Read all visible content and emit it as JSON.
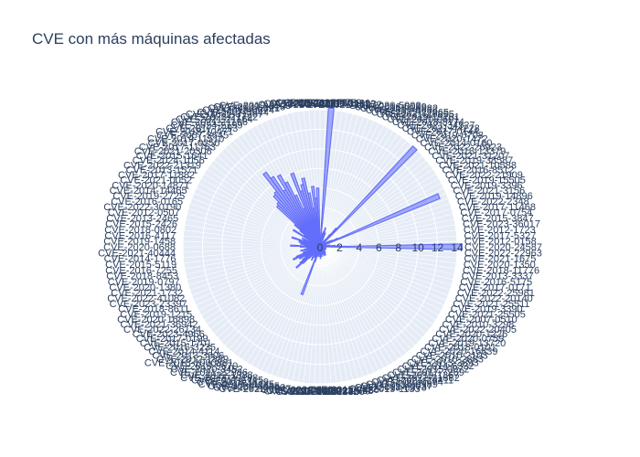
{
  "title": "CVE con más máquinas afectadas",
  "colors": {
    "bar_fill": "rgba(99,110,250,0.55)",
    "bar_line": "#636efa",
    "polar_bg": "#e5ecf6",
    "grid": "#ffffff",
    "text": "#2a3f5f"
  },
  "chart_data": {
    "type": "bar",
    "polar": true,
    "title": "CVE con más máquinas afectadas",
    "radial_range": [
      0,
      14
    ],
    "radial_ticks": [
      "0",
      "2",
      "4",
      "6",
      "8",
      "10",
      "12",
      "14"
    ],
    "grid": true,
    "categories": [
      "CVE-2020-24587",
      "CVE-2012-0158",
      "CVE-2017-5327",
      "CVE-2012-1723",
      "CVE-2023-36017",
      "CVE-2015-3847",
      "CVE-2017-0754",
      "CVE-2017-11468",
      "CVE-2022-2348",
      "CVE-2019-14896",
      "CVE-2021-3156",
      "CVE-2019-3396",
      "CVE-2019-15505",
      "CVE-2022-21909",
      "CVE-2016-8512",
      "CVE-2021-10588",
      "CVE-2019-38587",
      "CVE-2021-31207",
      "CVE-2018-13379",
      "CVE-2022-26923",
      "CVE-2014-0160",
      "CVE-2020-1472",
      "CVE-2019-0708",
      "CVE-2017-0144",
      "CVE-2021-44228",
      "CVE-2021-34527",
      "CVE-2018-8174",
      "CVE-2020-0601",
      "CVE-2019-19781",
      "CVE-2021-26855",
      "CVE-2022-22965",
      "CVE-2017-5638",
      "CVE-2018-15982",
      "CVE-2016-0099",
      "CVE-2020-5902",
      "CVE-2021-21972",
      "CVE-2019-11510",
      "CVE-2020-10189",
      "CVE-2017-8759",
      "CVE-2018-4878",
      "CVE-2020-10735",
      "CVE-2018-20676",
      "CVE-2020-20001",
      "CVE-2021-27903",
      "CVE-2019-2503",
      "CVE-2009-2618",
      "CVE-2014-6321",
      "CVE-2016-5674",
      "CVE-2007-3644",
      "CVE-2021-31207",
      "CVE-2023-21722",
      "CVE-2021-21164",
      "CVE-2021-21196",
      "CVE-2024-2199",
      "CVE-2017-7293",
      "CVE-2018-10471",
      "CVE-2007-3645",
      "CVE-2019-11510",
      "CVE-2017-0250",
      "CVE-2017-11763",
      "CVE-2021-20308",
      "CVE-2015-1641",
      "CVE-2024-1056",
      "CVE-2022-21319",
      "CVE-2013-1571",
      "CVE-2017-11882",
      "CVE-2021-0052",
      "CVE-2020-14871",
      "CVE-2014-14465",
      "CVE-2019-2725",
      "CVE-2016-0165",
      "CVE-2022-30190",
      "CVE-2012-0507",
      "CVE-2013-2465",
      "CVE-2015-2426",
      "CVE-2018-0802",
      "CVE-2016-4117",
      "CVE-2019-1458",
      "CVE-2020-0688",
      "CVE-2021-40444",
      "CVE-2014-1776",
      "CVE-2015-5119",
      "CVE-2016-7255",
      "CVE-2018-8453",
      "CVE-2019-0797",
      "CVE-2020-1380",
      "CVE-2021-1732",
      "CVE-2022-41082",
      "CVE-2023-23397",
      "CVE-2018-8611",
      "CVE-2019-1215",
      "CVE-2020-16898",
      "CVE-2021-36942",
      "CVE-2022-26134",
      "CVE-2023-4966",
      "CVE-2017-0199",
      "CVE-2015-1701",
      "CVE-2016-3235",
      "CVE-2014-4114",
      "CVE-2013-3906",
      "CVE-2012-1889",
      "CVE-2018-1000861",
      "CVE-2019-9670",
      "CVE-2020-3452",
      "CVE-2021-22986",
      "CVE-2022-1388",
      "CVE-2023-20198",
      "CVE-2017-5715",
      "CVE-2018-3639",
      "CVE-2019-11135",
      "CVE-2020-8835",
      "CVE-2021-3560",
      "CVE-2022-0847",
      "CVE-2023-0386",
      "CVE-2016-5195",
      "CVE-2017-1000253",
      "CVE-2018-14634",
      "CVE-2019-13272",
      "CVE-2020-14386",
      "CVE-2021-22555",
      "CVE-2022-2588",
      "CVE-2015-2426",
      "CVE-2019-1133",
      "CVE-2018-8373",
      "CVE-2017-0037",
      "CVE-2016-0189",
      "CVE-2020-0674",
      "CVE-2021-26411",
      "CVE-2022-21882",
      "CVE-2019-1367",
      "CVE-2017-7269",
      "CVE-2015-0072",
      "CVE-2014-6332",
      "CVE-2013-3893",
      "CVE-2010-2883",
      "CVE-2010-2103",
      "CVE-2020-16839",
      "CVE-2018-0101",
      "CVE-2019-13720",
      "CVE-2020-0759",
      "CVE-2020-1226",
      "CVE-2022-20405",
      "CVE-2010-3298",
      "CVE-2007-0510",
      "CVE-2021-25505",
      "CVE-2019-3390",
      "CVE-2021-25511",
      "CVE-2022-20140",
      "CVE-2022-25981",
      "CVE-2017-0171",
      "CVE-2016-5175",
      "CVE-2013-3337",
      "CVE-2018-11776",
      "CVE-2020-1350",
      "CVE-2021-1675",
      "CVE-2022-22963"
    ],
    "values": [
      14.5,
      2.0,
      1.5,
      1.0,
      1.0,
      0.6,
      0.6,
      0.5,
      0.4,
      0.4,
      13.2,
      2.0,
      1.4,
      1.2,
      1.0,
      0.8,
      0.7,
      0.6,
      0.5,
      0.5,
      14.0,
      2.5,
      1.6,
      1.0,
      0.8,
      0.6,
      0.5,
      0.5,
      0.4,
      0.4,
      1.5,
      1.2,
      2.0,
      1.6,
      1.4,
      1.0,
      0.8,
      14.2,
      1.0,
      0.6,
      6.0,
      5.0,
      6.2,
      4.0,
      5.6,
      7.2,
      6.6,
      6.0,
      8.0,
      4.2,
      5.8,
      7.4,
      8.4,
      6.8,
      8.6,
      9.4,
      7.2,
      7.0,
      6.2,
      6.0,
      3.4,
      2.6,
      2.0,
      1.6,
      3.2,
      1.2,
      1.0,
      2.0,
      1.8,
      1.2,
      3.0,
      1.4,
      2.2,
      1.2,
      2.0,
      1.0,
      1.6,
      3.0,
      2.0,
      1.4,
      1.2,
      1.0,
      1.6,
      2.0,
      1.2,
      1.0,
      1.8,
      1.0,
      2.6,
      3.0,
      1.6,
      2.4,
      1.2,
      1.8,
      2.2,
      2.6,
      3.2,
      2.4,
      1.6,
      1.2,
      1.0,
      0.8,
      1.4,
      1.6,
      1.0,
      0.8,
      1.2,
      1.0,
      5.2,
      1.6,
      1.0,
      0.8,
      0.6,
      0.8,
      1.0,
      0.8,
      0.6,
      0.8,
      1.2,
      1.0,
      0.8,
      0.8,
      1.0,
      0.8,
      0.6,
      0.8,
      0.6,
      0.8,
      1.0,
      0.6,
      0.6,
      0.8,
      1.0,
      0.6,
      0.8,
      0.6,
      0.8,
      0.6,
      0.6,
      0.6,
      0.6,
      0.6,
      0.6,
      0.6,
      0.6,
      0.6,
      0.6,
      0.6,
      0.6,
      0.6,
      0.6,
      0.6,
      0.6,
      0.6,
      0.6,
      0.6
    ]
  }
}
